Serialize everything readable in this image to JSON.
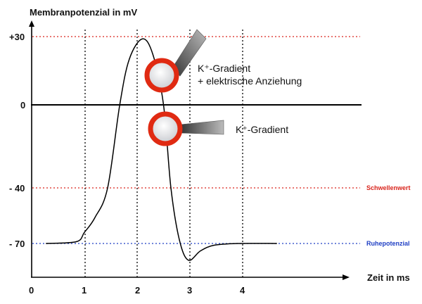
{
  "y_axis_title": "Membranpotenzial in mV",
  "x_axis_title": "Zeit in ms",
  "y_ticks": [
    "+30",
    "0",
    "- 40",
    "- 70"
  ],
  "x_ticks": [
    "0",
    "1",
    "2",
    "3",
    "4"
  ],
  "reference_lines": {
    "threshold": {
      "label": "Schwellenwert",
      "value_mV": -40,
      "color": "#d9241c"
    },
    "resting": {
      "label": "Ruhepotenzial",
      "value_mV": -70,
      "color": "#1f3fc4"
    },
    "peak": {
      "value_mV": 30,
      "color": "#d9241c"
    }
  },
  "annotations": {
    "upper_line1": "K⁺-Gradient",
    "upper_line2": "+ elektrische Anziehung",
    "lower": "K⁺-Gradient"
  },
  "ion_channel_color": "#e02a12",
  "curve_points_ms_mV": [
    [
      0.27,
      -70
    ],
    [
      0.85,
      -69
    ],
    [
      1.0,
      -64
    ],
    [
      1.2,
      -56
    ],
    [
      1.44,
      -40
    ],
    [
      1.67,
      0
    ],
    [
      1.85,
      20
    ],
    [
      2.1,
      29
    ],
    [
      2.3,
      22
    ],
    [
      2.5,
      0
    ],
    [
      2.64,
      -40
    ],
    [
      2.8,
      -68
    ],
    [
      2.97,
      -79
    ],
    [
      3.2,
      -74
    ],
    [
      3.45,
      -71
    ],
    [
      3.9,
      -70
    ],
    [
      4.65,
      -70
    ]
  ]
}
